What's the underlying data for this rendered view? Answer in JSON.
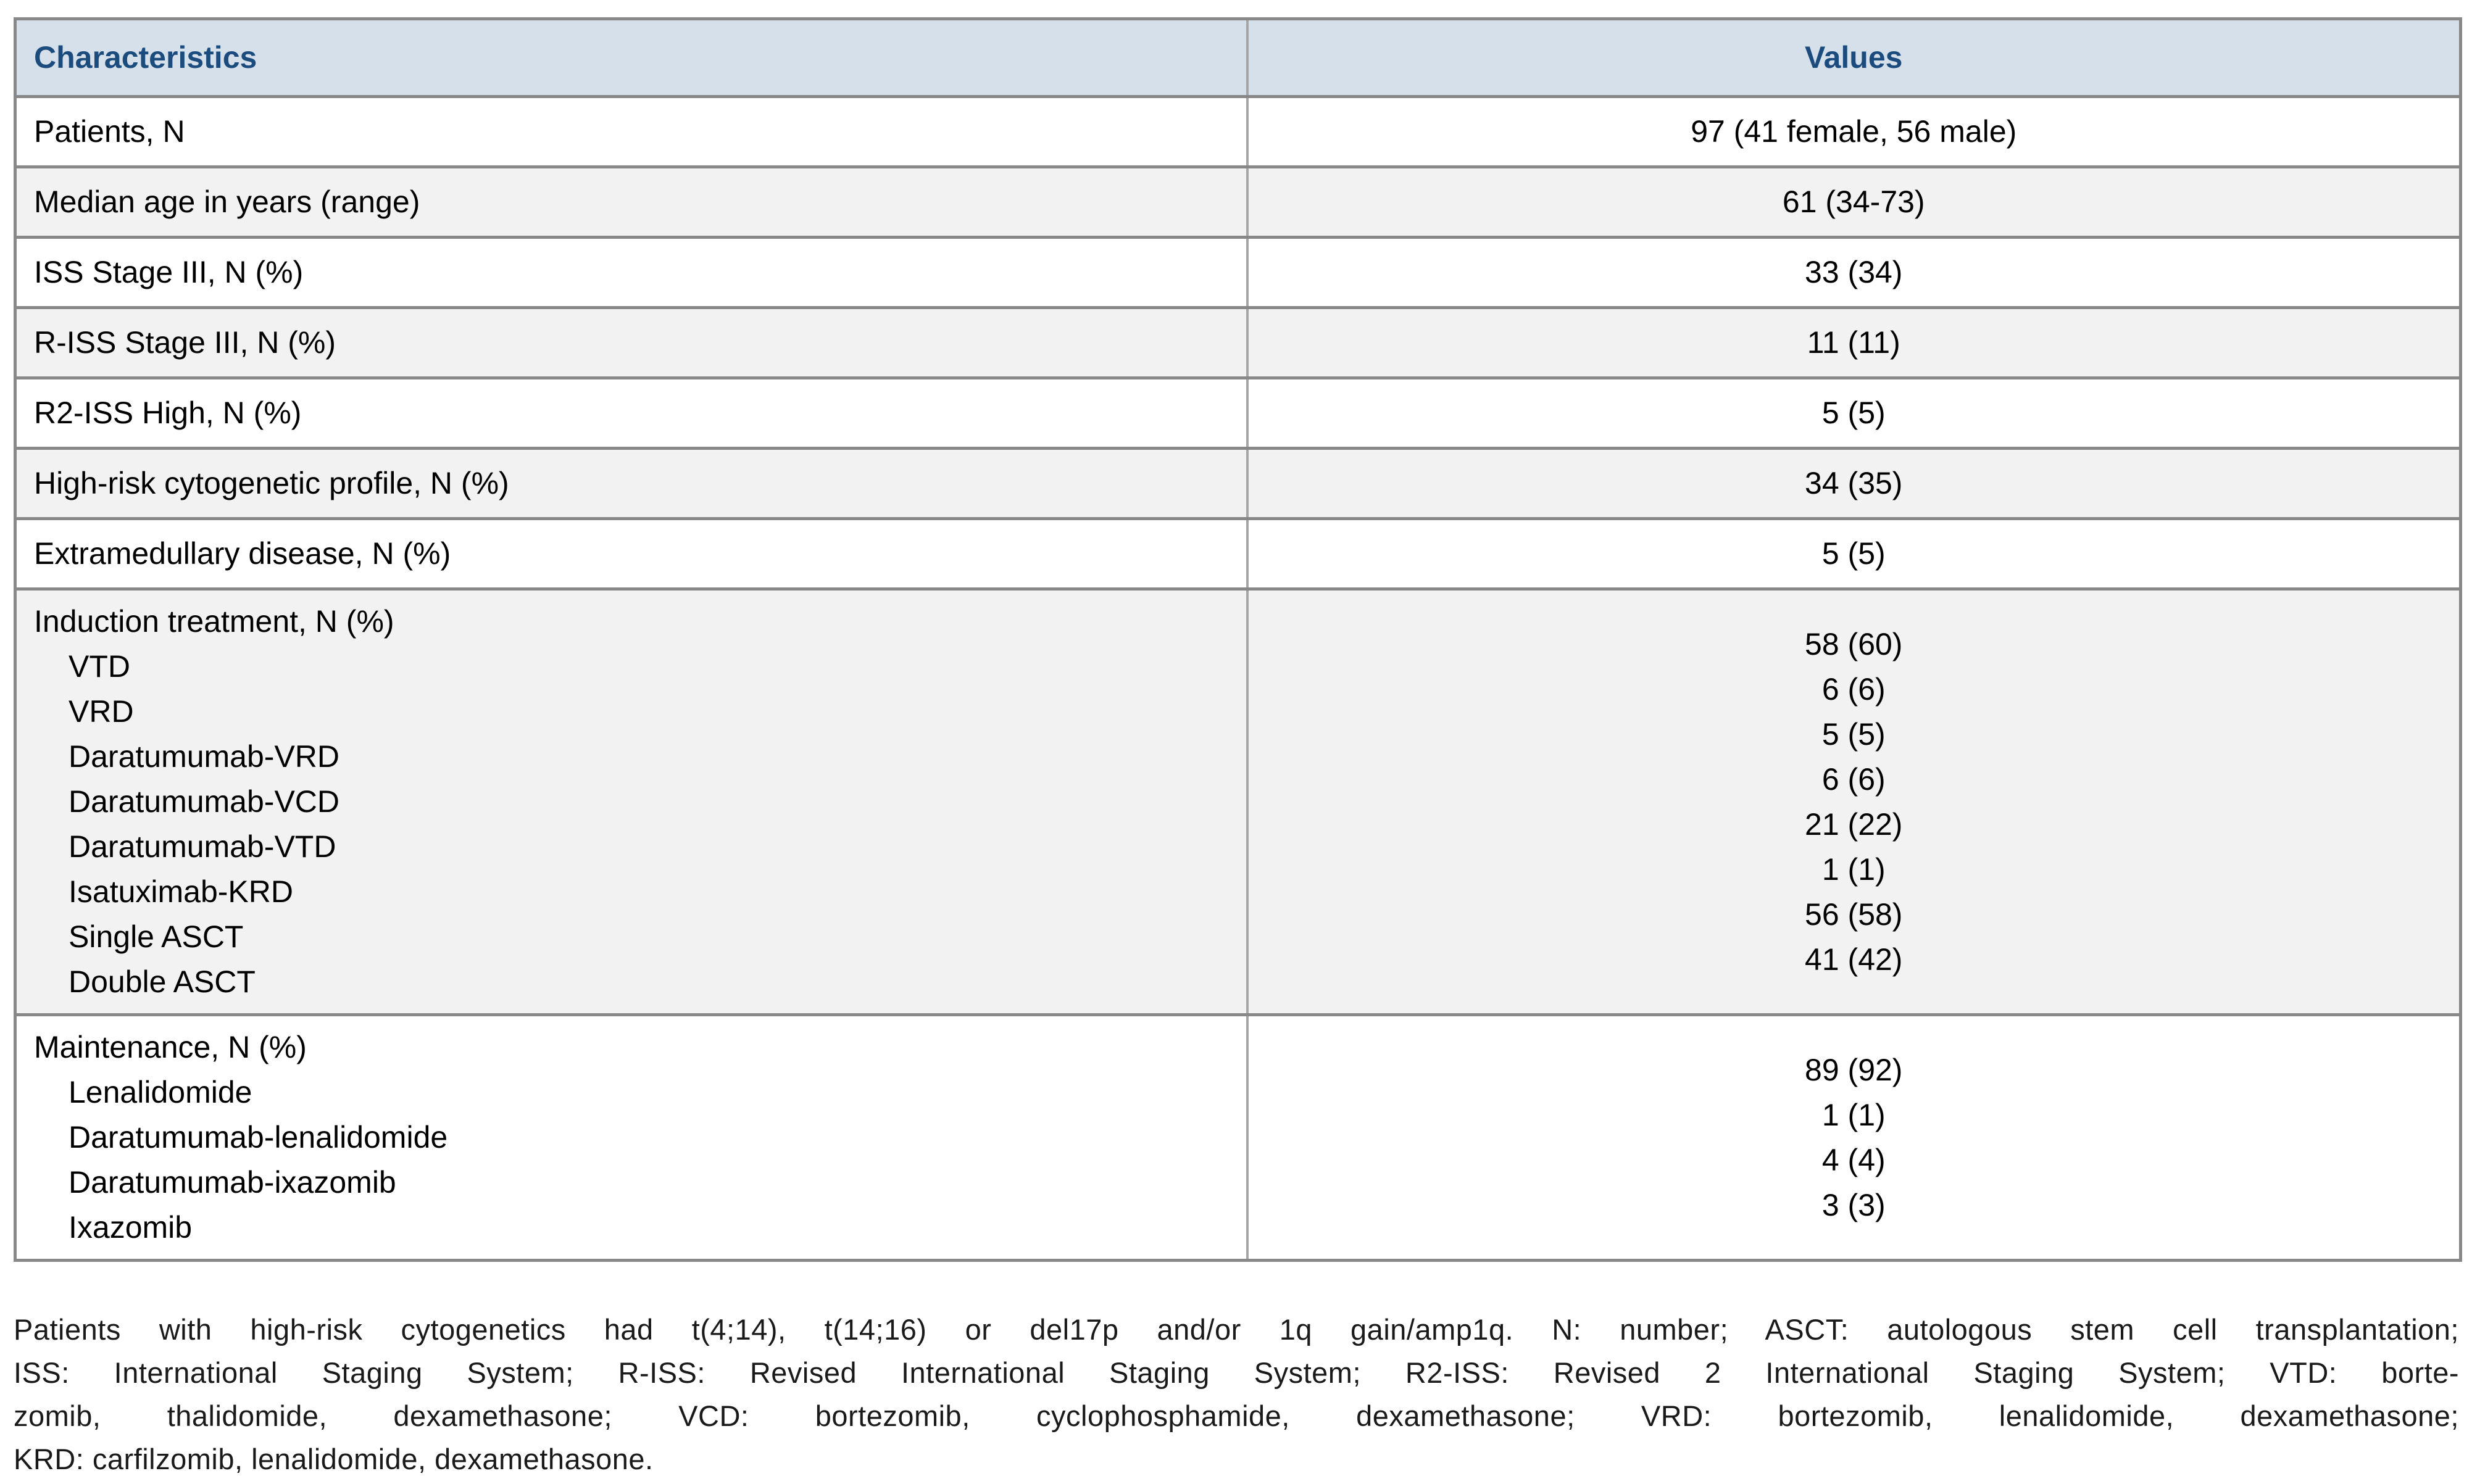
{
  "table": {
    "columns": [
      "Characteristics",
      "Values"
    ],
    "rows": [
      {
        "label": "Patients, N",
        "subitems": [],
        "values": [
          "97 (41 female, 56 male)"
        ]
      },
      {
        "label": "Median age in years (range)",
        "subitems": [],
        "values": [
          "61 (34-73)"
        ]
      },
      {
        "label": "ISS Stage III, N (%)",
        "subitems": [],
        "values": [
          "33 (34)"
        ]
      },
      {
        "label": "R-ISS Stage III, N (%)",
        "subitems": [],
        "values": [
          "11 (11)"
        ]
      },
      {
        "label": "R2-ISS High, N (%)",
        "subitems": [],
        "values": [
          "5 (5)"
        ]
      },
      {
        "label": "High-risk cytogenetic profile, N (%)",
        "subitems": [],
        "values": [
          "34 (35)"
        ]
      },
      {
        "label": "Extramedullary disease, N (%)",
        "subitems": [],
        "values": [
          "5 (5)"
        ]
      },
      {
        "label": "Induction treatment, N (%)",
        "subitems": [
          "VTD",
          "VRD",
          "Daratumumab-VRD",
          "Daratumumab-VCD",
          "Daratumumab-VTD",
          "Isatuximab-KRD",
          "Single ASCT",
          "Double ASCT"
        ],
        "values": [
          "58 (60)",
          "6 (6)",
          "5 (5)",
          "6 (6)",
          "21 (22)",
          "1 (1)",
          "56 (58)",
          "41 (42)"
        ]
      },
      {
        "label": "Maintenance, N (%)",
        "subitems": [
          "Lenalidomide",
          "Daratumumab-lenalidomide",
          "Daratumumab-ixazomib",
          "Ixazomib"
        ],
        "values": [
          "89 (92)",
          "1 (1)",
          "4 (4)",
          "3 (3)"
        ]
      }
    ]
  },
  "footnote": {
    "lines": [
      "Patients with high-risk cytogenetics had t(4;14), t(14;16) or del17p and/or 1q gain/amp1q. N: number; ASCT: autologous stem cell transplantation;",
      "ISS: International Staging System; R-ISS: Revised International Staging System; R2-ISS: Revised 2 International Staging System; VTD: borte-",
      "zomib, thalidomide, dexamethasone; VCD: bortezomib, cyclophosphamide, dexamethasone; VRD: bortezomib, lenalidomide, dexamethasone;",
      "KRD: carfilzomib, lenalidomide, dexamethasone."
    ]
  },
  "colors": {
    "header_bg": "#d6e0ea",
    "header_text": "#1c4b7d",
    "alt_row_bg": "#f2f2f2",
    "row_bg": "#ffffff",
    "border": "#888888",
    "divider": "#a5a5a5",
    "text": "#000000",
    "footnote_text": "#1a1a1a"
  }
}
